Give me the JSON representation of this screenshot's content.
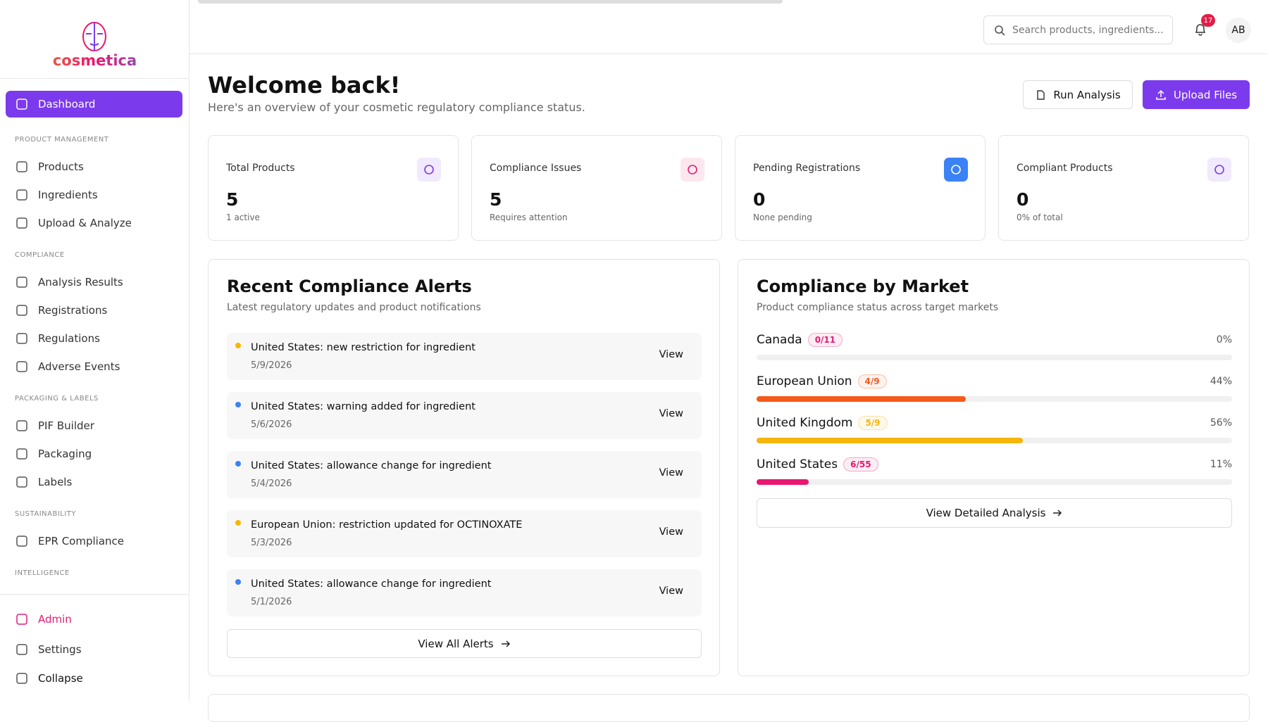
{
  "brand": "cosmetica",
  "sidebar": {
    "sections": [
      {
        "title": null,
        "items": [
          "Dashboard"
        ]
      },
      {
        "title": "PRODUCT MANAGEMENT",
        "items": [
          "Products",
          "Ingredients",
          "Upload & Analyze"
        ]
      },
      {
        "title": "COMPLIANCE",
        "items": [
          "Analysis Results",
          "Registrations",
          "Regulations",
          "Adverse Events"
        ]
      },
      {
        "title": "PACKAGING & LABELS",
        "items": [
          "PIF Builder",
          "Packaging",
          "Labels"
        ]
      },
      {
        "title": "SUSTAINABILITY",
        "items": [
          "EPR Compliance"
        ]
      },
      {
        "title": "INTELLIGENCE",
        "items": []
      }
    ],
    "footer": [
      "Admin",
      "Settings",
      "Collapse"
    ]
  },
  "header": {
    "search_placeholder": "Search products, ingredients...",
    "notifications": "17",
    "avatar": "AB"
  },
  "page": {
    "title": "Welcome back!",
    "subtitle": "Here's an overview of your cosmetic regulatory compliance status.",
    "actions": [
      "Run Analysis",
      "Upload Files"
    ]
  },
  "stats": [
    {
      "label": "Total Products",
      "value": "5",
      "note": "1 active",
      "color": "#7c3aed",
      "bg": "#f1eafe"
    },
    {
      "label": "Compliance Issues",
      "value": "5",
      "note": "Requires attention",
      "color": "#e11d74",
      "bg": "#fde7ef"
    },
    {
      "label": "Pending Registrations",
      "value": "0",
      "note": "None pending",
      "color": "#ffffff",
      "bg": "#3b82f6"
    },
    {
      "label": "Compliant Products",
      "value": "0",
      "note": "0% of total",
      "color": "#7c3aed",
      "bg": "#f1eafe"
    }
  ],
  "alerts": {
    "title": "Recent Compliance Alerts",
    "subtitle": "Latest regulatory updates and product notifications",
    "action": "View",
    "footer": "View All Alerts",
    "items": [
      {
        "text": "United States: new restriction for ingredient",
        "date": "5/9/2026",
        "color": "#f5b800"
      },
      {
        "text": "United States: warning added for ingredient",
        "date": "5/6/2026",
        "color": "#3b82f6"
      },
      {
        "text": "United States: allowance change for ingredient",
        "date": "5/4/2026",
        "color": "#3b82f6"
      },
      {
        "text": "European Union: restriction updated for OCTINOXATE",
        "date": "5/3/2026",
        "color": "#f5b800"
      },
      {
        "text": "United States: allowance change for ingredient",
        "date": "5/1/2026",
        "color": "#3b82f6"
      }
    ]
  },
  "markets": {
    "title": "Compliance by Market",
    "subtitle": "Product compliance status across target markets",
    "footer": "View Detailed Analysis",
    "items": [
      {
        "name": "Canada",
        "badge": "0/11",
        "percent": 0,
        "percent_label": "0%",
        "color": "#e11d74"
      },
      {
        "name": "European Union",
        "badge": "4/9",
        "percent": 44,
        "percent_label": "44%",
        "color": "#f55a1a"
      },
      {
        "name": "United Kingdom",
        "badge": "5/9",
        "percent": 56,
        "percent_label": "56%",
        "color": "#f5b50a"
      },
      {
        "name": "United States",
        "badge": "6/55",
        "percent": 11,
        "percent_label": "11%",
        "color": "#e8176f"
      }
    ]
  }
}
